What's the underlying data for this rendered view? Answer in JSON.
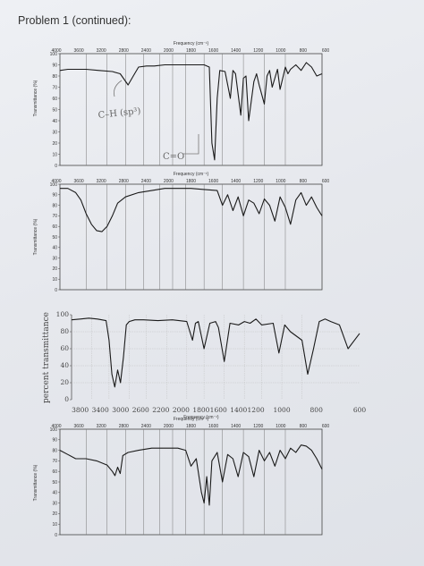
{
  "page": {
    "title": "Problem 1 (continued):"
  },
  "chart_data": [
    {
      "type": "line",
      "style": "standard",
      "freq_label": "Frequency (cm⁻¹)",
      "ylabel": "Transmittance (%)",
      "x_ticks_top": [
        "4000",
        "3600",
        "3200",
        "2800",
        "2400",
        "2000",
        "1800",
        "1600",
        "1400",
        "1200",
        "1000",
        "800",
        "600"
      ],
      "y_ticks": [
        "100",
        "90",
        "80",
        "70",
        "60",
        "50",
        "40",
        "30",
        "20",
        "10",
        "0"
      ],
      "ylim": [
        0,
        100
      ],
      "annotations": [
        "C–H (sp³)",
        "C=O"
      ],
      "series": [
        {
          "x": [
            0,
            0.03,
            0.06,
            0.1,
            0.15,
            0.2,
            0.23,
            0.26,
            0.28,
            0.3,
            0.33,
            0.36,
            0.4,
            0.45,
            0.5,
            0.55,
            0.57,
            0.58,
            0.59,
            0.6,
            0.61,
            0.63,
            0.65,
            0.66,
            0.67,
            0.69,
            0.7,
            0.71,
            0.72,
            0.74,
            0.75,
            0.76,
            0.78,
            0.79,
            0.8,
            0.81,
            0.83,
            0.84,
            0.86,
            0.87,
            0.88,
            0.9,
            0.92,
            0.94,
            0.96,
            0.98,
            1.0
          ],
          "y": [
            85,
            86,
            86,
            86,
            85,
            84,
            82,
            72,
            80,
            88,
            89,
            89,
            90,
            90,
            90,
            90,
            88,
            20,
            5,
            60,
            85,
            84,
            60,
            85,
            82,
            45,
            78,
            80,
            40,
            75,
            82,
            72,
            55,
            80,
            85,
            70,
            86,
            68,
            88,
            82,
            86,
            90,
            85,
            92,
            88,
            80,
            82
          ]
        }
      ]
    },
    {
      "type": "line",
      "style": "standard",
      "freq_label": "Frequency (cm⁻¹)",
      "ylabel": "Transmittance (%)",
      "x_ticks_top": [
        "4000",
        "3600",
        "3200",
        "2800",
        "2400",
        "2000",
        "1800",
        "1600",
        "1400",
        "1200",
        "1000",
        "800",
        "600"
      ],
      "y_ticks": [
        "100",
        "90",
        "80",
        "70",
        "60",
        "50",
        "40",
        "30",
        "20",
        "10",
        "0"
      ],
      "ylim": [
        0,
        100
      ],
      "series": [
        {
          "x": [
            0,
            0.03,
            0.06,
            0.08,
            0.1,
            0.12,
            0.14,
            0.16,
            0.18,
            0.2,
            0.22,
            0.25,
            0.3,
            0.35,
            0.4,
            0.45,
            0.5,
            0.55,
            0.6,
            0.62,
            0.64,
            0.66,
            0.68,
            0.7,
            0.72,
            0.74,
            0.76,
            0.78,
            0.8,
            0.82,
            0.84,
            0.86,
            0.88,
            0.9,
            0.92,
            0.94,
            0.96,
            0.98,
            1.0
          ],
          "y": [
            96,
            96,
            92,
            85,
            72,
            62,
            56,
            55,
            60,
            70,
            82,
            88,
            92,
            94,
            96,
            96,
            96,
            95,
            94,
            80,
            90,
            75,
            88,
            70,
            85,
            82,
            72,
            86,
            80,
            65,
            88,
            78,
            62,
            85,
            92,
            80,
            88,
            78,
            70
          ]
        }
      ]
    },
    {
      "type": "line",
      "style": "alternate",
      "x_ticks_bottom": [
        "3800",
        "3400",
        "3000",
        "2600",
        "2200",
        "2000",
        "1800",
        "1600",
        "1400",
        "1200",
        "1000",
        "800",
        "600"
      ],
      "freq_label": "Frequency (cm⁻¹)",
      "ylabel": "percent transmittance",
      "y_ticks": [
        "100",
        "80",
        "60",
        "40",
        "20",
        "0"
      ],
      "ylim": [
        0,
        100
      ],
      "series": [
        {
          "x": [
            0,
            0.03,
            0.06,
            0.09,
            0.12,
            0.13,
            0.14,
            0.15,
            0.16,
            0.17,
            0.18,
            0.19,
            0.2,
            0.22,
            0.25,
            0.3,
            0.35,
            0.4,
            0.42,
            0.43,
            0.44,
            0.46,
            0.48,
            0.5,
            0.51,
            0.53,
            0.55,
            0.58,
            0.6,
            0.62,
            0.64,
            0.66,
            0.7,
            0.72,
            0.74,
            0.76,
            0.8,
            0.82,
            0.84,
            0.86,
            0.88,
            0.9,
            0.93,
            0.96,
            1.0
          ],
          "y": [
            94,
            95,
            96,
            95,
            93,
            70,
            30,
            15,
            35,
            20,
            50,
            88,
            92,
            94,
            94,
            93,
            94,
            92,
            70,
            90,
            92,
            60,
            90,
            92,
            85,
            45,
            90,
            88,
            92,
            90,
            95,
            88,
            90,
            55,
            88,
            80,
            70,
            30,
            60,
            92,
            95,
            92,
            88,
            60,
            78
          ]
        }
      ]
    },
    {
      "type": "line",
      "style": "standard",
      "freq_label": "Frequency (cm⁻¹)",
      "ylabel": "Transmittance (%)",
      "x_ticks_top": [
        "4000",
        "3600",
        "3200",
        "2800",
        "2400",
        "2000",
        "1800",
        "1600",
        "1400",
        "1200",
        "1000",
        "800",
        "600"
      ],
      "y_ticks": [
        "100",
        "90",
        "80",
        "70",
        "60",
        "50",
        "40",
        "30",
        "20",
        "10",
        "0"
      ],
      "ylim": [
        0,
        100
      ],
      "series": [
        {
          "x": [
            0,
            0.03,
            0.06,
            0.1,
            0.14,
            0.18,
            0.2,
            0.21,
            0.22,
            0.23,
            0.24,
            0.26,
            0.3,
            0.35,
            0.4,
            0.45,
            0.48,
            0.5,
            0.52,
            0.54,
            0.55,
            0.56,
            0.57,
            0.58,
            0.6,
            0.62,
            0.64,
            0.66,
            0.68,
            0.7,
            0.72,
            0.74,
            0.76,
            0.78,
            0.8,
            0.82,
            0.84,
            0.86,
            0.88,
            0.9,
            0.92,
            0.94,
            0.96,
            0.98,
            1.0
          ],
          "y": [
            80,
            76,
            72,
            72,
            70,
            66,
            60,
            56,
            64,
            58,
            75,
            78,
            80,
            82,
            82,
            82,
            80,
            65,
            72,
            40,
            30,
            55,
            28,
            70,
            78,
            50,
            76,
            72,
            55,
            78,
            74,
            55,
            80,
            70,
            78,
            65,
            80,
            72,
            82,
            78,
            85,
            84,
            80,
            72,
            62
          ]
        }
      ]
    }
  ]
}
